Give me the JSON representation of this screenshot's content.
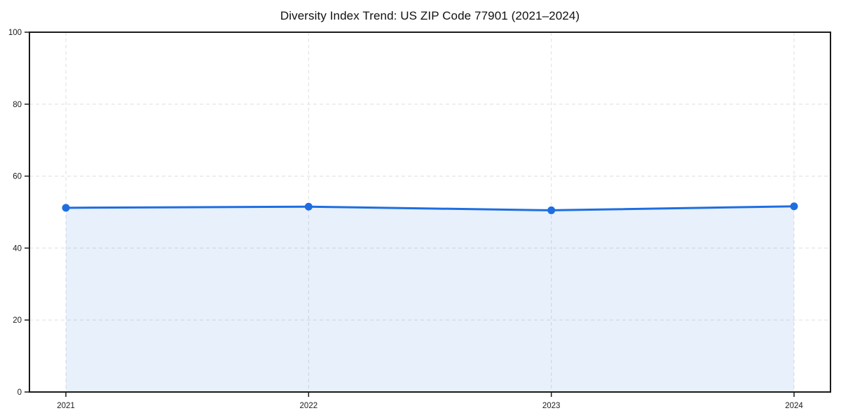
{
  "chart_data": {
    "type": "area",
    "title": "Diversity Index Trend: US ZIP Code 77901 (2021–2024)",
    "categories": [
      "2021",
      "2022",
      "2023",
      "2024"
    ],
    "series": [
      {
        "name": "Diversity Index",
        "values": [
          51.2,
          51.5,
          50.5,
          51.6
        ]
      }
    ],
    "xlabel": "",
    "ylabel": "",
    "ylim": [
      0,
      100
    ],
    "yticks": [
      0,
      20,
      40,
      60,
      80,
      100
    ],
    "grid": "dashed",
    "legend": "none",
    "colors": {
      "line": "#1e6ee0",
      "marker": "#1e6ee0",
      "area_fill": "rgba(30,110,224,0.10)",
      "gridline": "#e4e4e4",
      "spine": "#1a1a1a",
      "tick_text": "#1a1a1a",
      "background": "#ffffff"
    }
  }
}
